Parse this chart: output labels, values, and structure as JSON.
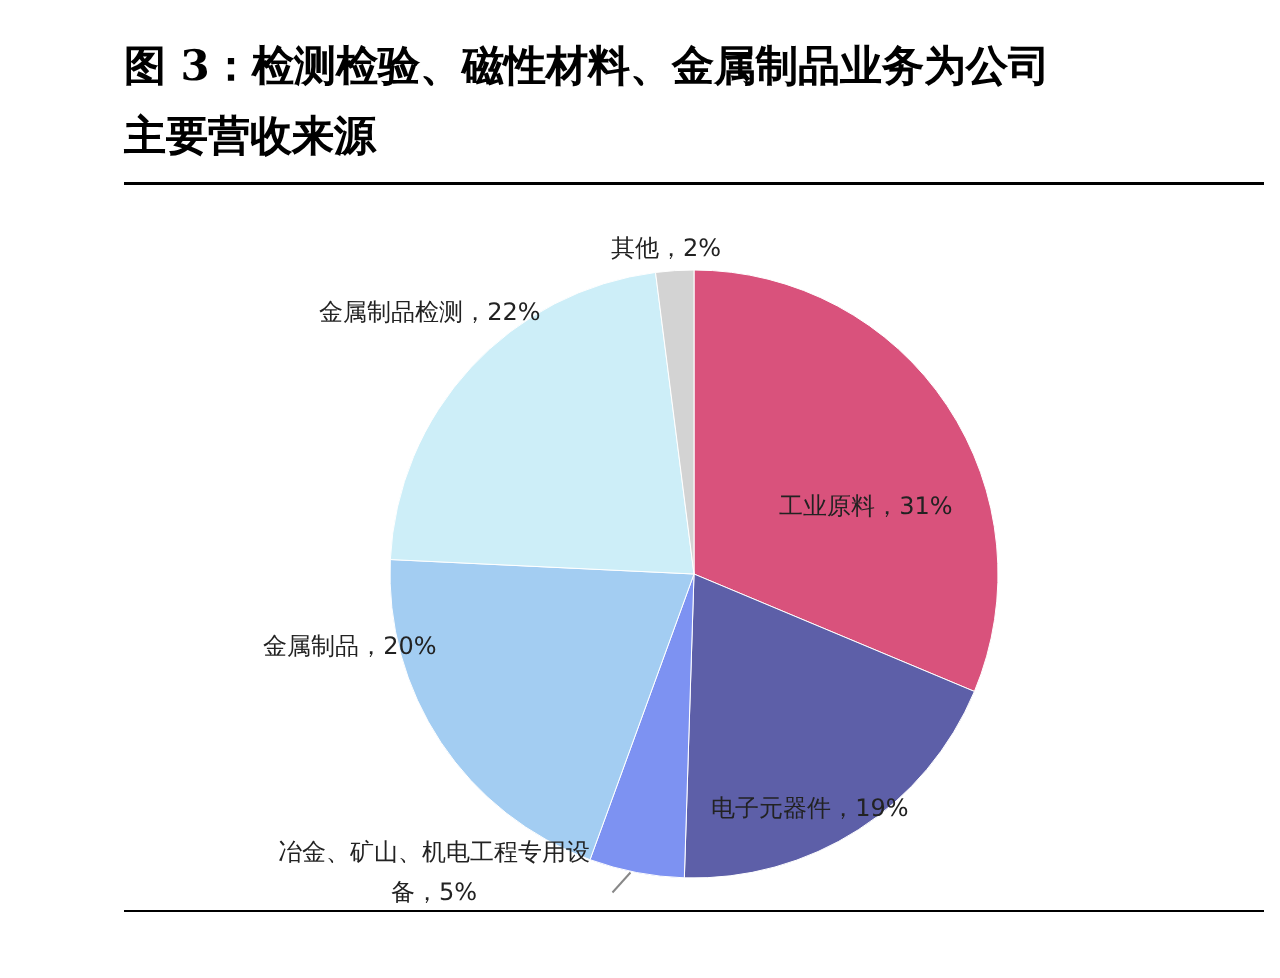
{
  "chart_data": {
    "type": "pie",
    "title": "图 3：检测检验、磁性材料、金属制品业务为公司主要营收来源",
    "categories": [
      "工业原料",
      "电子元器件",
      "冶金、矿山、机电工程专用设备",
      "金属制品",
      "金属制品检测",
      "其他"
    ],
    "values": [
      31,
      19,
      5,
      20,
      22,
      2
    ],
    "value_labels": [
      "31%",
      "19%",
      "5%",
      "20%",
      "22%",
      "2%"
    ],
    "colors": [
      "#d9527c",
      "#5d5fa8",
      "#7d92f2",
      "#a3cdf2",
      "#cdeef8",
      "#d3d3d3"
    ],
    "legend": false
  }
}
